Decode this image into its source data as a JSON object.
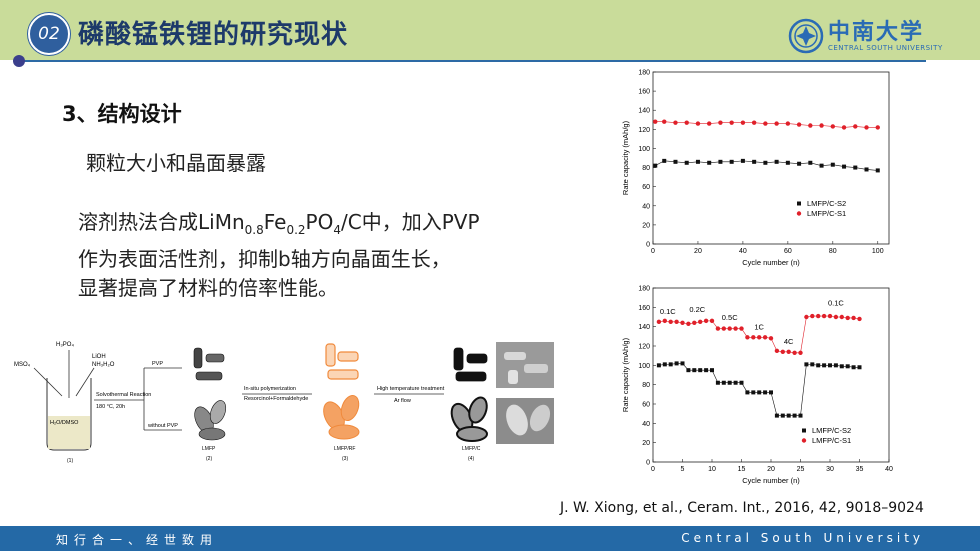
{
  "header": {
    "section_number": "02",
    "title": "磷酸锰铁锂的研究现状",
    "logo_cn": "中南大学",
    "logo_en": "CENTRAL SOUTH UNIVERSITY"
  },
  "content": {
    "section_heading": "3、结构设计",
    "subheading": "颗粒大小和晶面暴露",
    "para_line1_pre": "溶剂热法合成LiMn",
    "mn_sub": "0.8",
    "fe_text": "Fe",
    "fe_sub": "0.2",
    "po_text": "PO",
    "po_sub": "4",
    "para_line1_post": "/C中，加入PVP",
    "para_line2": "作为表面活性剂，抑制b轴方向晶面生长，",
    "para_line3": "显著提高了材料的倍率性能。"
  },
  "scheme": {
    "h3po4": "H₃PO₄",
    "mso4": "MSO₄",
    "lioh": "LiOH",
    "nh3": "NH₃H₂O",
    "solvent": "H₂O/DMSO",
    "reaction": "Solvothermal Reaction",
    "conditions": "180 °C, 20h",
    "pvp": "PVP",
    "without_pvp": "without PVP",
    "polymerization": "In-situ polymerization",
    "reagents": "Resorcinol+Formaldehyde",
    "treatment": "High temperature treatment",
    "arflow": "Ar flow",
    "label1": "(1)",
    "label2": "(2)",
    "label3": "(3)",
    "label4": "(4)",
    "lmfp": "LMFP",
    "lmfp_rf": "LMFP/RF",
    "lmfp_c": "LMFP/C"
  },
  "chart_data": [
    {
      "type": "scatter",
      "xlabel": "Cycle number (n)",
      "ylabel": "Rate capacity (mAh/g)",
      "xlim": [
        0,
        105
      ],
      "ylim": [
        0,
        180
      ],
      "xticks": [
        0,
        20,
        40,
        60,
        80,
        100
      ],
      "yticks": [
        0,
        20,
        40,
        60,
        80,
        100,
        120,
        140,
        160,
        180
      ],
      "legend_position": "right-middle",
      "series": [
        {
          "name": "LMFP/C-S2",
          "color": "#111111",
          "marker": "square",
          "x": [
            1,
            5,
            10,
            15,
            20,
            25,
            30,
            35,
            40,
            45,
            50,
            55,
            60,
            65,
            70,
            75,
            80,
            85,
            90,
            95,
            100
          ],
          "y": [
            82,
            87,
            86,
            85,
            86,
            85,
            86,
            86,
            87,
            86,
            85,
            86,
            85,
            84,
            85,
            82,
            83,
            81,
            80,
            78,
            77
          ]
        },
        {
          "name": "LMFP/C-S1",
          "color": "#e0202a",
          "marker": "circle",
          "x": [
            1,
            5,
            10,
            15,
            20,
            25,
            30,
            35,
            40,
            45,
            50,
            55,
            60,
            65,
            70,
            75,
            80,
            85,
            90,
            95,
            100
          ],
          "y": [
            128,
            128,
            127,
            127,
            126,
            126,
            127,
            127,
            127,
            127,
            126,
            126,
            126,
            125,
            124,
            124,
            123,
            122,
            123,
            122,
            122
          ]
        }
      ]
    },
    {
      "type": "scatter",
      "xlabel": "Cycle number (n)",
      "ylabel": "Rate capacity (mAh/g)",
      "xlim": [
        0,
        40
      ],
      "ylim": [
        0,
        180
      ],
      "xticks": [
        0,
        5,
        10,
        15,
        20,
        25,
        30,
        35,
        40
      ],
      "yticks": [
        0,
        20,
        40,
        60,
        80,
        100,
        120,
        140,
        160,
        180
      ],
      "legend_position": "bottom-right",
      "annotations": [
        {
          "text": "0.1C",
          "x": 2.5,
          "y": 153
        },
        {
          "text": "0.2C",
          "x": 7.5,
          "y": 155
        },
        {
          "text": "0.5C",
          "x": 13,
          "y": 147
        },
        {
          "text": "1C",
          "x": 18,
          "y": 137
        },
        {
          "text": "4C",
          "x": 23,
          "y": 122
        },
        {
          "text": "0.1C",
          "x": 31,
          "y": 162
        }
      ],
      "series": [
        {
          "name": "LMFP/C-S2",
          "color": "#111111",
          "marker": "square",
          "x": [
            1,
            2,
            3,
            4,
            5,
            6,
            7,
            8,
            9,
            10,
            11,
            12,
            13,
            14,
            15,
            16,
            17,
            18,
            19,
            20,
            21,
            22,
            23,
            24,
            25,
            26,
            27,
            28,
            29,
            30,
            31,
            32,
            33,
            34,
            35
          ],
          "y": [
            100,
            101,
            101,
            102,
            102,
            95,
            95,
            95,
            95,
            95,
            82,
            82,
            82,
            82,
            82,
            72,
            72,
            72,
            72,
            72,
            48,
            48,
            48,
            48,
            48,
            101,
            101,
            100,
            100,
            100,
            100,
            99,
            99,
            98,
            98
          ]
        },
        {
          "name": "LMFP/C-S1",
          "color": "#e0202a",
          "marker": "circle",
          "x": [
            1,
            2,
            3,
            4,
            5,
            6,
            7,
            8,
            9,
            10,
            11,
            12,
            13,
            14,
            15,
            16,
            17,
            18,
            19,
            20,
            21,
            22,
            23,
            24,
            25,
            26,
            27,
            28,
            29,
            30,
            31,
            32,
            33,
            34,
            35
          ],
          "y": [
            145,
            146,
            145,
            145,
            144,
            143,
            144,
            145,
            146,
            146,
            138,
            138,
            138,
            138,
            138,
            129,
            129,
            129,
            129,
            128,
            115,
            114,
            114,
            113,
            113,
            150,
            151,
            151,
            151,
            151,
            150,
            150,
            149,
            149,
            148
          ]
        }
      ]
    }
  ],
  "citation": "J. W. Xiong, et al., Ceram. Int., 2016, 42, 9018–9024",
  "footer": {
    "left": "知行合一、经世致用",
    "right": "Central South University"
  },
  "colors": {
    "header_bg": "#c9dc9a",
    "header_line": "#2d6aa5",
    "footer_bg": "#2469a6",
    "series_black": "#111111",
    "series_red": "#e0202a",
    "orange": "#f08a3c"
  }
}
